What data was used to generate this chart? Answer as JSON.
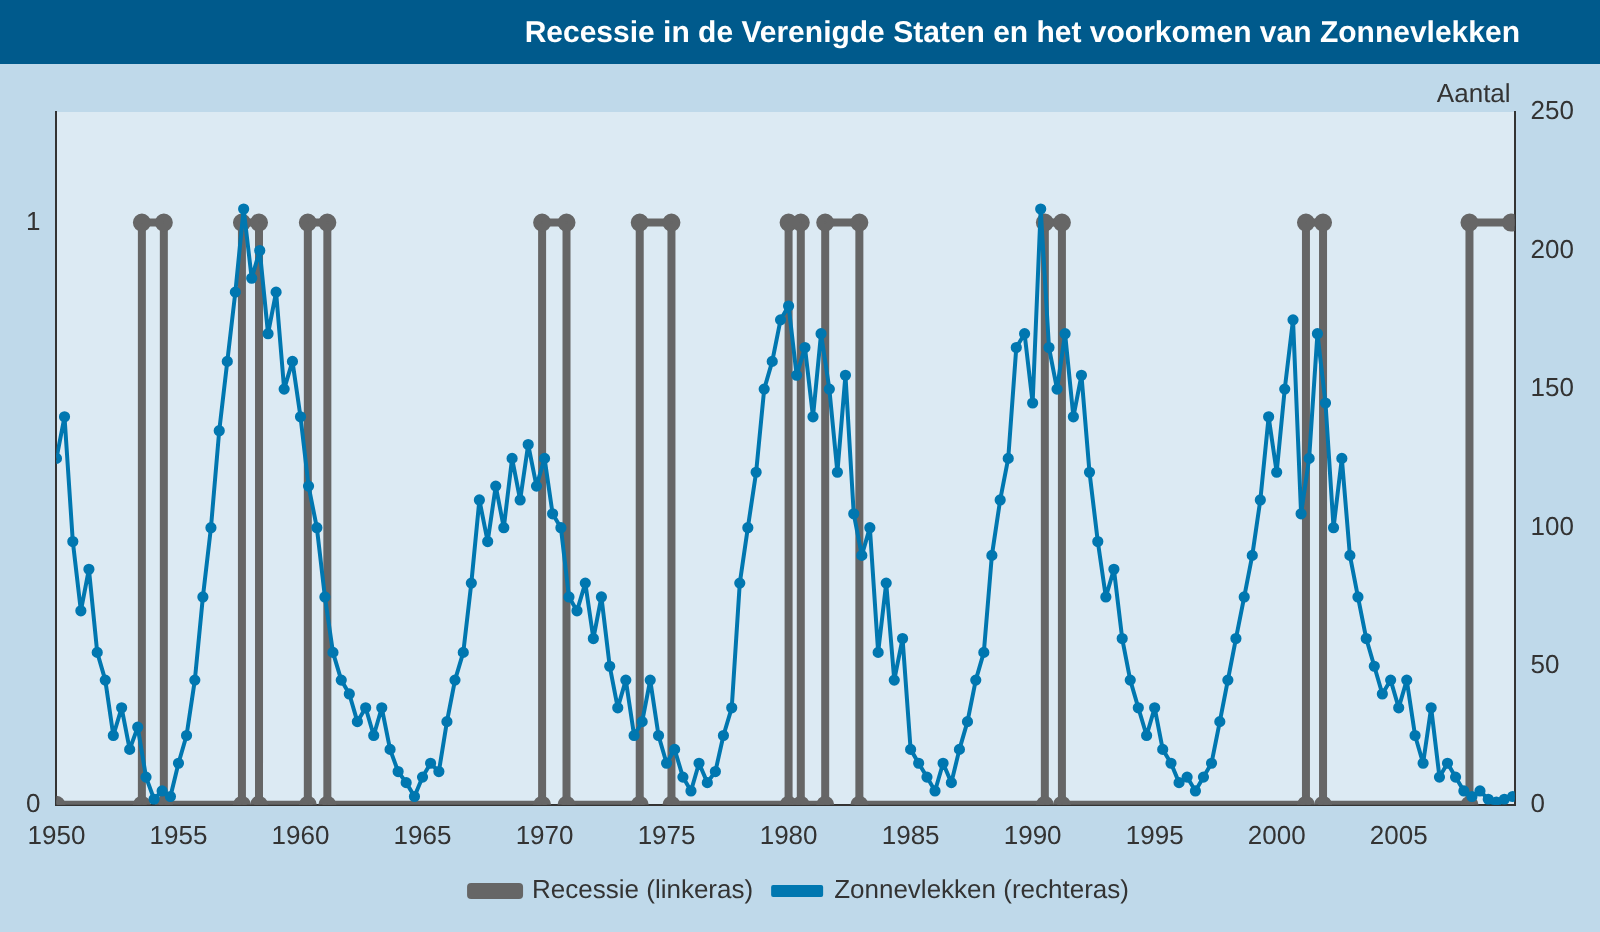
{
  "chart_data": {
    "type": "line",
    "title": "Recessie in de Verenigde Staten en het voorkomen van Zonnevlekken",
    "y2label": "Aantal",
    "xlim": [
      1950,
      2009.75
    ],
    "xticks": [
      1950,
      1955,
      1960,
      1965,
      1970,
      1975,
      1980,
      1985,
      1990,
      1995,
      2000,
      2005
    ],
    "ylim": [
      0,
      1.19
    ],
    "yticks": [
      0,
      1
    ],
    "y2lim": [
      0,
      250
    ],
    "y2ticks": [
      0,
      50,
      100,
      150,
      200,
      250
    ],
    "legend": "bottom",
    "marker": "circle",
    "line_style": "solid",
    "series": [
      {
        "name": "Recessie (linkeras)",
        "color": "#666666",
        "axis": "y",
        "x": [
          1950,
          1953.5,
          1953.5,
          1954.4,
          1954.4,
          1957.6,
          1957.6,
          1958.3,
          1958.3,
          1960.3,
          1960.3,
          1961.1,
          1961.1,
          1969.9,
          1969.9,
          1970.9,
          1970.9,
          1973.9,
          1973.9,
          1975.2,
          1975.2,
          1980.0,
          1980.0,
          1980.5,
          1980.5,
          1981.5,
          1981.5,
          1982.9,
          1982.9,
          1990.5,
          1990.5,
          1991.2,
          1991.2,
          2001.2,
          2001.2,
          2001.9,
          2001.9,
          2007.9,
          2007.9,
          2009.6
        ],
        "values": [
          0,
          0,
          1,
          1,
          0,
          0,
          1,
          1,
          0,
          0,
          1,
          1,
          0,
          0,
          1,
          1,
          0,
          0,
          1,
          1,
          0,
          0,
          1,
          1,
          0,
          0,
          1,
          1,
          0,
          0,
          1,
          1,
          0,
          0,
          1,
          1,
          0,
          0,
          1,
          1
        ]
      },
      {
        "name": "Zonnevlekken (rechteras)",
        "color": "#0077b0",
        "axis": "y2",
        "x": [
          1950,
          1950.33,
          1950.67,
          1951,
          1951.33,
          1951.67,
          1952,
          1952.33,
          1952.67,
          1953,
          1953.33,
          1953.67,
          1954,
          1954.33,
          1954.67,
          1955,
          1955.33,
          1955.67,
          1956,
          1956.33,
          1956.67,
          1957,
          1957.33,
          1957.67,
          1958,
          1958.33,
          1958.67,
          1959,
          1959.33,
          1959.67,
          1960,
          1960.33,
          1960.67,
          1961,
          1961.33,
          1961.67,
          1962,
          1962.33,
          1962.67,
          1963,
          1963.33,
          1963.67,
          1964,
          1964.33,
          1964.67,
          1965,
          1965.33,
          1965.67,
          1966,
          1966.33,
          1966.67,
          1967,
          1967.33,
          1967.67,
          1968,
          1968.33,
          1968.67,
          1969,
          1969.33,
          1969.67,
          1970,
          1970.33,
          1970.67,
          1971,
          1971.33,
          1971.67,
          1972,
          1972.33,
          1972.67,
          1973,
          1973.33,
          1973.67,
          1974,
          1974.33,
          1974.67,
          1975,
          1975.33,
          1975.67,
          1976,
          1976.33,
          1976.67,
          1977,
          1977.33,
          1977.67,
          1978,
          1978.33,
          1978.67,
          1979,
          1979.33,
          1979.67,
          1980,
          1980.33,
          1980.67,
          1981,
          1981.33,
          1981.67,
          1982,
          1982.33,
          1982.67,
          1983,
          1983.33,
          1983.67,
          1984,
          1984.33,
          1984.67,
          1985,
          1985.33,
          1985.67,
          1986,
          1986.33,
          1986.67,
          1987,
          1987.33,
          1987.67,
          1988,
          1988.33,
          1988.67,
          1989,
          1989.33,
          1989.67,
          1990,
          1990.33,
          1990.67,
          1991,
          1991.33,
          1991.67,
          1992,
          1992.33,
          1992.67,
          1993,
          1993.33,
          1993.67,
          1994,
          1994.33,
          1994.67,
          1995,
          1995.33,
          1995.67,
          1996,
          1996.33,
          1996.67,
          1997,
          1997.33,
          1997.67,
          1998,
          1998.33,
          1998.67,
          1999,
          1999.33,
          1999.67,
          2000,
          2000.33,
          2000.67,
          2001,
          2001.33,
          2001.67,
          2002,
          2002.33,
          2002.67,
          2003,
          2003.33,
          2003.67,
          2004,
          2004.33,
          2004.67,
          2005,
          2005.33,
          2005.67,
          2006,
          2006.33,
          2006.67,
          2007,
          2007.33,
          2007.67,
          2008,
          2008.33,
          2008.67,
          2009,
          2009.33,
          2009.67
        ],
        "values": [
          125,
          140,
          95,
          70,
          85,
          55,
          45,
          25,
          35,
          20,
          28,
          10,
          2,
          5,
          3,
          15,
          25,
          45,
          75,
          100,
          135,
          160,
          185,
          215,
          190,
          200,
          170,
          185,
          150,
          160,
          140,
          115,
          100,
          75,
          55,
          45,
          40,
          30,
          35,
          25,
          35,
          20,
          12,
          8,
          3,
          10,
          15,
          12,
          30,
          45,
          55,
          80,
          110,
          95,
          115,
          100,
          125,
          110,
          130,
          115,
          125,
          105,
          100,
          75,
          70,
          80,
          60,
          75,
          50,
          35,
          45,
          25,
          30,
          45,
          25,
          15,
          20,
          10,
          5,
          15,
          8,
          12,
          25,
          35,
          80,
          100,
          120,
          150,
          160,
          175,
          180,
          155,
          165,
          140,
          170,
          150,
          120,
          155,
          105,
          90,
          100,
          55,
          80,
          45,
          60,
          20,
          15,
          10,
          5,
          15,
          8,
          20,
          30,
          45,
          55,
          90,
          110,
          125,
          165,
          170,
          145,
          215,
          165,
          150,
          170,
          140,
          155,
          120,
          95,
          75,
          85,
          60,
          45,
          35,
          25,
          35,
          20,
          15,
          8,
          10,
          5,
          10,
          15,
          30,
          45,
          60,
          75,
          90,
          110,
          140,
          120,
          150,
          175,
          105,
          125,
          170,
          145,
          100,
          125,
          90,
          75,
          60,
          50,
          40,
          45,
          35,
          45,
          25,
          15,
          35,
          10,
          15,
          10,
          5,
          3,
          5,
          2,
          1,
          2,
          3
        ]
      }
    ]
  }
}
